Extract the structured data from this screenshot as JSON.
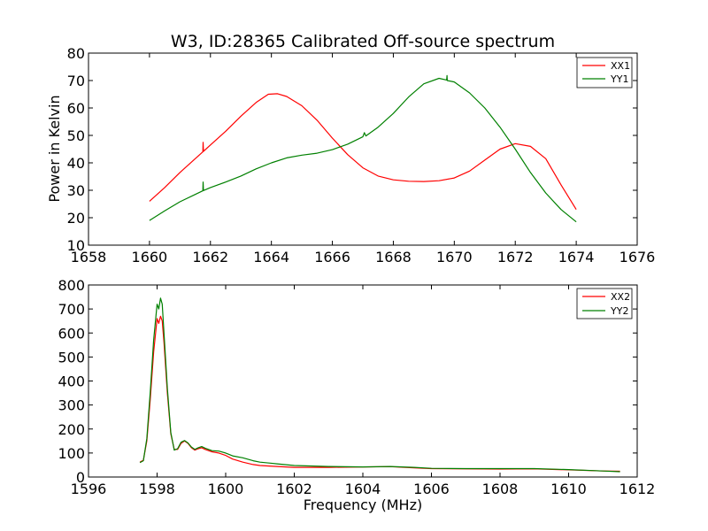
{
  "chart_data": [
    {
      "type": "line",
      "title": "W3, ID:28365 Calibrated Off-source spectrum",
      "xlabel": "",
      "ylabel": "Power in Kelvin",
      "xlim": [
        1658,
        1676
      ],
      "ylim": [
        10,
        80
      ],
      "xticks": [
        1658,
        1660,
        1662,
        1664,
        1666,
        1668,
        1670,
        1672,
        1674,
        1676
      ],
      "yticks": [
        10,
        20,
        30,
        40,
        50,
        60,
        70,
        80
      ],
      "legend": "top-right",
      "grid": false,
      "series": [
        {
          "name": "XX1",
          "color": "#ff0000",
          "points": [
            [
              1660.0,
              26.0
            ],
            [
              1660.5,
              31.0
            ],
            [
              1661.0,
              36.5
            ],
            [
              1661.5,
              41.5
            ],
            [
              1661.75,
              44.0
            ],
            [
              1661.76,
              47.5
            ],
            [
              1661.77,
              44.2
            ],
            [
              1662.0,
              46.5
            ],
            [
              1662.5,
              51.5
            ],
            [
              1663.0,
              57.0
            ],
            [
              1663.5,
              62.0
            ],
            [
              1663.9,
              65.0
            ],
            [
              1664.2,
              65.2
            ],
            [
              1664.5,
              64.2
            ],
            [
              1665.0,
              60.8
            ],
            [
              1665.5,
              55.5
            ],
            [
              1666.0,
              49.0
            ],
            [
              1666.5,
              43.0
            ],
            [
              1667.0,
              38.2
            ],
            [
              1667.5,
              35.2
            ],
            [
              1668.0,
              33.8
            ],
            [
              1668.5,
              33.3
            ],
            [
              1669.0,
              33.2
            ],
            [
              1669.5,
              33.5
            ],
            [
              1670.0,
              34.5
            ],
            [
              1670.5,
              37.0
            ],
            [
              1671.0,
              41.0
            ],
            [
              1671.5,
              45.0
            ],
            [
              1672.0,
              47.0
            ],
            [
              1672.5,
              46.0
            ],
            [
              1673.0,
              41.5
            ],
            [
              1673.5,
              32.0
            ],
            [
              1674.0,
              23.0
            ]
          ]
        },
        {
          "name": "YY1",
          "color": "#008000",
          "points": [
            [
              1660.0,
              19.0
            ],
            [
              1660.5,
              22.5
            ],
            [
              1661.0,
              25.8
            ],
            [
              1661.5,
              28.5
            ],
            [
              1661.75,
              29.8
            ],
            [
              1661.76,
              33.0
            ],
            [
              1661.77,
              29.9
            ],
            [
              1662.0,
              31.0
            ],
            [
              1662.5,
              33.0
            ],
            [
              1663.0,
              35.2
            ],
            [
              1663.5,
              37.8
            ],
            [
              1664.0,
              40.0
            ],
            [
              1664.5,
              41.8
            ],
            [
              1665.0,
              42.8
            ],
            [
              1665.5,
              43.5
            ],
            [
              1666.0,
              44.8
            ],
            [
              1666.5,
              46.8
            ],
            [
              1667.0,
              49.5
            ],
            [
              1667.05,
              51.0
            ],
            [
              1667.1,
              49.8
            ],
            [
              1667.5,
              53.0
            ],
            [
              1668.0,
              58.0
            ],
            [
              1668.5,
              64.0
            ],
            [
              1669.0,
              68.8
            ],
            [
              1669.5,
              70.8
            ],
            [
              1669.75,
              70.2
            ],
            [
              1669.76,
              71.8
            ],
            [
              1669.77,
              70.0
            ],
            [
              1670.0,
              69.5
            ],
            [
              1670.5,
              65.5
            ],
            [
              1671.0,
              60.0
            ],
            [
              1671.5,
              53.0
            ],
            [
              1672.0,
              45.0
            ],
            [
              1672.5,
              36.5
            ],
            [
              1673.0,
              29.0
            ],
            [
              1673.5,
              23.0
            ],
            [
              1674.0,
              18.5
            ]
          ]
        }
      ]
    },
    {
      "type": "line",
      "title": "",
      "xlabel": "Frequency (MHz)",
      "ylabel": "",
      "xlim": [
        1596,
        1612
      ],
      "ylim": [
        0,
        800
      ],
      "xticks": [
        1596,
        1598,
        1600,
        1602,
        1604,
        1606,
        1608,
        1610,
        1612
      ],
      "yticks": [
        0,
        100,
        200,
        300,
        400,
        500,
        600,
        700,
        800
      ],
      "legend": "top-right",
      "grid": false,
      "series": [
        {
          "name": "XX2",
          "color": "#ff0000",
          "points": [
            [
              1597.5,
              62
            ],
            [
              1597.6,
              70
            ],
            [
              1597.7,
              150
            ],
            [
              1597.8,
              320
            ],
            [
              1597.9,
              520
            ],
            [
              1598.0,
              660
            ],
            [
              1598.05,
              640
            ],
            [
              1598.1,
              670
            ],
            [
              1598.15,
              650
            ],
            [
              1598.2,
              560
            ],
            [
              1598.3,
              350
            ],
            [
              1598.4,
              180
            ],
            [
              1598.5,
              115
            ],
            [
              1598.6,
              115
            ],
            [
              1598.7,
              140
            ],
            [
              1598.8,
              150
            ],
            [
              1598.9,
              140
            ],
            [
              1599.0,
              122
            ],
            [
              1599.1,
              112
            ],
            [
              1599.2,
              118
            ],
            [
              1599.3,
              122
            ],
            [
              1599.4,
              115
            ],
            [
              1599.6,
              105
            ],
            [
              1599.8,
              100
            ],
            [
              1600.0,
              90
            ],
            [
              1600.2,
              75
            ],
            [
              1600.5,
              62
            ],
            [
              1600.8,
              52
            ],
            [
              1601.0,
              48
            ],
            [
              1601.5,
              44
            ],
            [
              1602.0,
              40
            ],
            [
              1603.0,
              40
            ],
            [
              1604.0,
              42
            ],
            [
              1604.8,
              43
            ],
            [
              1605.5,
              38
            ],
            [
              1606.0,
              35
            ],
            [
              1607.0,
              34
            ],
            [
              1608.0,
              33
            ],
            [
              1609.0,
              34
            ],
            [
              1610.0,
              30
            ],
            [
              1611.0,
              25
            ],
            [
              1611.5,
              24
            ]
          ]
        },
        {
          "name": "YY2",
          "color": "#008000",
          "points": [
            [
              1597.5,
              60
            ],
            [
              1597.6,
              68
            ],
            [
              1597.7,
              160
            ],
            [
              1597.8,
              350
            ],
            [
              1597.9,
              570
            ],
            [
              1598.0,
              720
            ],
            [
              1598.05,
              700
            ],
            [
              1598.1,
              745
            ],
            [
              1598.15,
              720
            ],
            [
              1598.2,
              600
            ],
            [
              1598.3,
              370
            ],
            [
              1598.4,
              185
            ],
            [
              1598.5,
              112
            ],
            [
              1598.6,
              118
            ],
            [
              1598.7,
              145
            ],
            [
              1598.8,
              152
            ],
            [
              1598.9,
              142
            ],
            [
              1599.0,
              125
            ],
            [
              1599.1,
              115
            ],
            [
              1599.2,
              122
            ],
            [
              1599.3,
              127
            ],
            [
              1599.4,
              120
            ],
            [
              1599.6,
              110
            ],
            [
              1599.8,
              108
            ],
            [
              1600.0,
              100
            ],
            [
              1600.2,
              88
            ],
            [
              1600.5,
              80
            ],
            [
              1600.8,
              68
            ],
            [
              1601.0,
              62
            ],
            [
              1601.3,
              58
            ],
            [
              1601.5,
              55
            ],
            [
              1602.0,
              48
            ],
            [
              1603.0,
              44
            ],
            [
              1604.0,
              42
            ],
            [
              1604.8,
              44
            ],
            [
              1605.5,
              40
            ],
            [
              1606.0,
              36
            ],
            [
              1607.0,
              35
            ],
            [
              1608.0,
              35
            ],
            [
              1609.0,
              35
            ],
            [
              1610.0,
              31
            ],
            [
              1611.0,
              25
            ],
            [
              1611.5,
              22
            ]
          ]
        }
      ]
    }
  ]
}
